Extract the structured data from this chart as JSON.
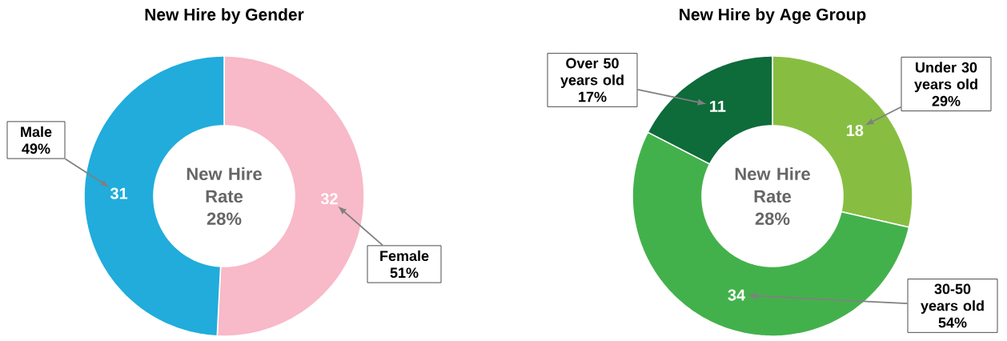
{
  "chart_data": [
    {
      "type": "donut",
      "title": "New Hire by Gender",
      "categories": [
        "Female",
        "Male"
      ],
      "values": [
        32,
        31
      ],
      "colors": [
        "#f8b9c8",
        "#21acdc"
      ],
      "data_labels": true,
      "annotations": [
        "New Hire Rate 28%",
        {
          "text": "51%",
          "x": "Female"
        },
        {
          "text": "49%",
          "x": "Male"
        }
      ]
    },
    {
      "type": "donut",
      "title": "New Hire by Age Group",
      "categories": [
        "Under 30 years old",
        "30-50 years old",
        "Over 50 years old"
      ],
      "values": [
        18,
        34,
        11
      ],
      "colors": [
        "#87be41",
        "#43b14b",
        "#0e6b3a"
      ],
      "data_labels": true,
      "annotations": [
        "New Hire Rate 28%",
        {
          "text": "29%",
          "x": "Under 30 years old"
        },
        {
          "text": "54%",
          "x": "30-50 years old"
        },
        {
          "text": "17%",
          "x": "Over 50 years old"
        }
      ]
    }
  ]
}
